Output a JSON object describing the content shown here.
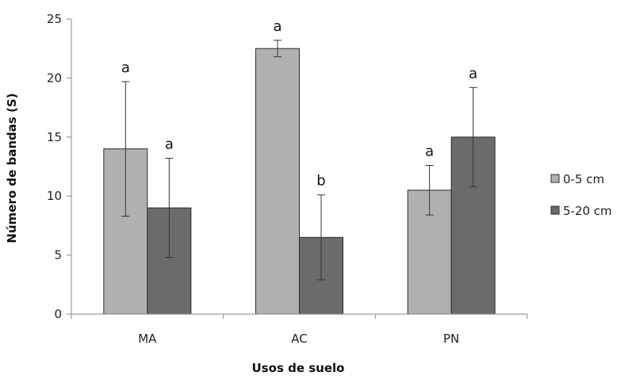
{
  "chart_data": {
    "type": "bar",
    "xlabel": "Usos de suelo",
    "ylabel": "Número de bandas (S)",
    "ylim": [
      0,
      25
    ],
    "yticks": [
      0,
      5,
      10,
      15,
      20,
      25
    ],
    "categories": [
      "MA",
      "AC",
      "PN"
    ],
    "series": [
      {
        "name": "0-5 cm",
        "color": "#b0b0b0",
        "values": [
          14.0,
          22.5,
          10.5
        ],
        "error": [
          5.7,
          0.7,
          2.1
        ],
        "letters": [
          "a",
          "a",
          "a"
        ]
      },
      {
        "name": "5-20 cm",
        "color": "#6b6b6b",
        "values": [
          9.0,
          6.5,
          15.0
        ],
        "error": [
          4.2,
          3.6,
          4.2
        ],
        "letters": [
          "a",
          "b",
          "a"
        ]
      }
    ],
    "legend_position": "right",
    "grid": false
  }
}
